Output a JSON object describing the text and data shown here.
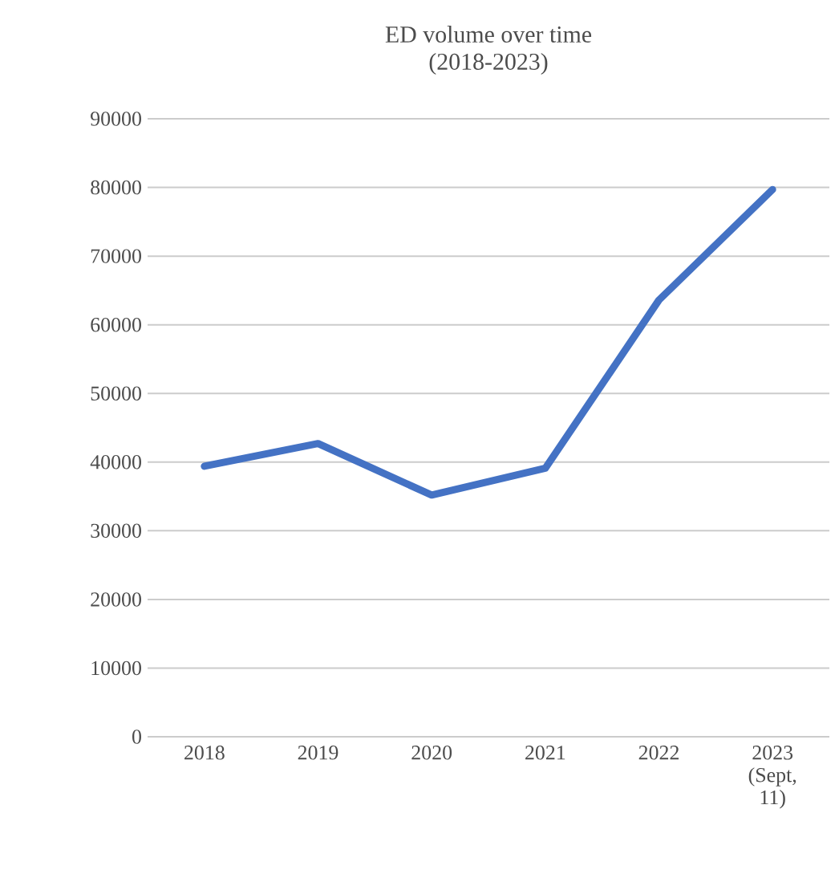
{
  "chart_data": {
    "type": "line",
    "title": "ED volume over time (2018-2023)",
    "categories": [
      "2018",
      "2019",
      "2020",
      "2021",
      "2022",
      "2023 (Sept, 11)"
    ],
    "series": [
      {
        "color": "#4472c4",
        "values": [
          39400,
          42700,
          35200,
          39100,
          63600,
          79700
        ]
      }
    ],
    "ylim": [
      0,
      90000
    ],
    "yticks": [
      0,
      10000,
      20000,
      30000,
      40000,
      50000,
      60000,
      70000,
      80000,
      90000
    ],
    "grid": "y",
    "marker": "none",
    "line_style": "solid"
  }
}
